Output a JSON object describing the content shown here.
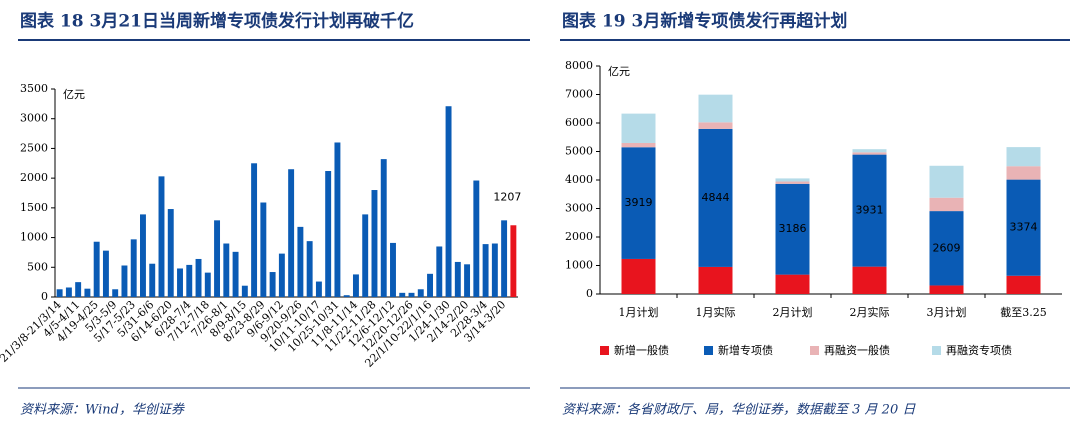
{
  "chart_data": [
    {
      "type": "bar",
      "title": "图表 18   3月21日当周新增专项债发行计划再破千亿",
      "y_unit": "亿元",
      "source": "资料来源：Wind，华创证券",
      "categories": [
        "21/3/8-21/3/14",
        null,
        "4/5-4/11",
        null,
        "4/19-4/25",
        null,
        "5/3-5/9",
        null,
        "5/17-5/23",
        null,
        "5/31-6/6",
        null,
        "6/14-6/20",
        null,
        "6/28-7/4",
        null,
        "7/12-7/18",
        null,
        "7/26-8/1",
        null,
        "8/9-8/15",
        null,
        "8/23-8/29",
        null,
        "9/6-9/12",
        null,
        "9/20-9/26",
        null,
        "10/11-10/17",
        null,
        "10/25-10/31",
        null,
        "11/8-11/14",
        null,
        "11/22-11/28",
        null,
        "12/6-12/12",
        null,
        "12/20-12/26",
        null,
        "22/1/10-22/1/16",
        null,
        "1/24-1/30",
        null,
        "2/14-2/20",
        null,
        "2/28-3/4",
        null,
        "3/14-3/20",
        null
      ],
      "values": [
        130,
        160,
        250,
        140,
        930,
        780,
        130,
        530,
        970,
        1390,
        560,
        2030,
        1480,
        480,
        540,
        640,
        410,
        1290,
        900,
        760,
        190,
        2250,
        1590,
        420,
        730,
        2150,
        1180,
        940,
        260,
        2120,
        2600,
        30,
        380,
        1390,
        1800,
        2320,
        910,
        70,
        70,
        130,
        390,
        850,
        3210,
        590,
        550,
        1960,
        890,
        900,
        1290,
        1207
      ],
      "colors": [
        "#0a5bb5",
        "#0a5bb5",
        "#0a5bb5",
        "#0a5bb5",
        "#0a5bb5",
        "#0a5bb5",
        "#0a5bb5",
        "#0a5bb5",
        "#0a5bb5",
        "#0a5bb5",
        "#0a5bb5",
        "#0a5bb5",
        "#0a5bb5",
        "#0a5bb5",
        "#0a5bb5",
        "#0a5bb5",
        "#0a5bb5",
        "#0a5bb5",
        "#0a5bb5",
        "#0a5bb5",
        "#0a5bb5",
        "#0a5bb5",
        "#0a5bb5",
        "#0a5bb5",
        "#0a5bb5",
        "#0a5bb5",
        "#0a5bb5",
        "#0a5bb5",
        "#0a5bb5",
        "#0a5bb5",
        "#0a5bb5",
        "#0a5bb5",
        "#0a5bb5",
        "#0a5bb5",
        "#0a5bb5",
        "#0a5bb5",
        "#0a5bb5",
        "#0a5bb5",
        "#0a5bb5",
        "#0a5bb5",
        "#0a5bb5",
        "#0a5bb5",
        "#0a5bb5",
        "#0a5bb5",
        "#0a5bb5",
        "#0a5bb5",
        "#0a5bb5",
        "#0a5bb5",
        "#0a5bb5",
        "#e8141e"
      ],
      "labeled_last": true,
      "ylim": [
        0,
        3500
      ],
      "yticks": [
        0,
        500,
        1000,
        1500,
        2000,
        2500,
        3000,
        3500
      ]
    },
    {
      "type": "stacked_bar",
      "title": "图表 19   3月新增专项债发行再超计划",
      "y_unit": "亿元",
      "source": "资料来源：各省财政厅、局，华创证券，数据截至 3 月 20 日",
      "categories": [
        "1月计划",
        "1月实际",
        "2月计划",
        "2月实际",
        "3月计划",
        "截至3.25"
      ],
      "series": [
        {
          "name": "新增一般债",
          "color": "#e8141e",
          "values": [
            1230,
            950,
            680,
            960,
            300,
            640
          ]
        },
        {
          "name": "新增专项债",
          "color": "#0a5bb5",
          "values": [
            3919,
            4844,
            3186,
            3931,
            2609,
            3374
          ],
          "data_labels": true
        },
        {
          "name": "再融资一般债",
          "color": "#e9b3b5",
          "values": [
            150,
            230,
            80,
            80,
            470,
            470
          ]
        },
        {
          "name": "再融资专项债",
          "color": "#b5dbe8",
          "values": [
            1030,
            970,
            110,
            110,
            1120,
            670
          ]
        }
      ],
      "ylim": [
        0,
        8000
      ],
      "yticks": [
        0,
        1000,
        2000,
        3000,
        4000,
        5000,
        6000,
        7000,
        8000
      ]
    }
  ]
}
